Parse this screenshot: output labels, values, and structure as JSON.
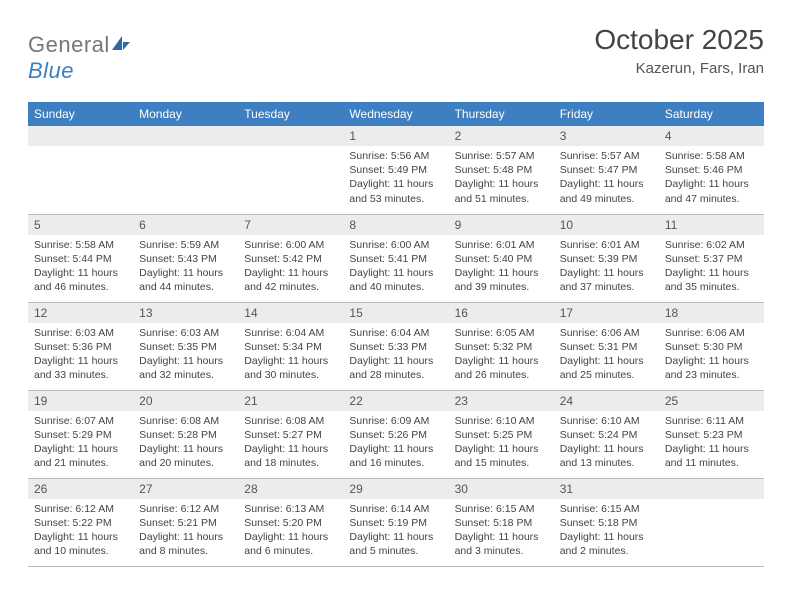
{
  "logo": {
    "text_a": "General",
    "text_b": "Blue"
  },
  "title": "October 2025",
  "location": "Kazerun, Fars, Iran",
  "colors": {
    "header_bg": "#3d7fc0",
    "header_text": "#ffffff",
    "daynum_bg": "#ececec",
    "text": "#444444",
    "rule": "#bbbbbb"
  },
  "weekdays": [
    "Sunday",
    "Monday",
    "Tuesday",
    "Wednesday",
    "Thursday",
    "Friday",
    "Saturday"
  ],
  "grid": {
    "leading_blanks": 3,
    "days": [
      {
        "n": 1,
        "sr": "5:56 AM",
        "ss": "5:49 PM",
        "dl": "11 hours and 53 minutes."
      },
      {
        "n": 2,
        "sr": "5:57 AM",
        "ss": "5:48 PM",
        "dl": "11 hours and 51 minutes."
      },
      {
        "n": 3,
        "sr": "5:57 AM",
        "ss": "5:47 PM",
        "dl": "11 hours and 49 minutes."
      },
      {
        "n": 4,
        "sr": "5:58 AM",
        "ss": "5:46 PM",
        "dl": "11 hours and 47 minutes."
      },
      {
        "n": 5,
        "sr": "5:58 AM",
        "ss": "5:44 PM",
        "dl": "11 hours and 46 minutes."
      },
      {
        "n": 6,
        "sr": "5:59 AM",
        "ss": "5:43 PM",
        "dl": "11 hours and 44 minutes."
      },
      {
        "n": 7,
        "sr": "6:00 AM",
        "ss": "5:42 PM",
        "dl": "11 hours and 42 minutes."
      },
      {
        "n": 8,
        "sr": "6:00 AM",
        "ss": "5:41 PM",
        "dl": "11 hours and 40 minutes."
      },
      {
        "n": 9,
        "sr": "6:01 AM",
        "ss": "5:40 PM",
        "dl": "11 hours and 39 minutes."
      },
      {
        "n": 10,
        "sr": "6:01 AM",
        "ss": "5:39 PM",
        "dl": "11 hours and 37 minutes."
      },
      {
        "n": 11,
        "sr": "6:02 AM",
        "ss": "5:37 PM",
        "dl": "11 hours and 35 minutes."
      },
      {
        "n": 12,
        "sr": "6:03 AM",
        "ss": "5:36 PM",
        "dl": "11 hours and 33 minutes."
      },
      {
        "n": 13,
        "sr": "6:03 AM",
        "ss": "5:35 PM",
        "dl": "11 hours and 32 minutes."
      },
      {
        "n": 14,
        "sr": "6:04 AM",
        "ss": "5:34 PM",
        "dl": "11 hours and 30 minutes."
      },
      {
        "n": 15,
        "sr": "6:04 AM",
        "ss": "5:33 PM",
        "dl": "11 hours and 28 minutes."
      },
      {
        "n": 16,
        "sr": "6:05 AM",
        "ss": "5:32 PM",
        "dl": "11 hours and 26 minutes."
      },
      {
        "n": 17,
        "sr": "6:06 AM",
        "ss": "5:31 PM",
        "dl": "11 hours and 25 minutes."
      },
      {
        "n": 18,
        "sr": "6:06 AM",
        "ss": "5:30 PM",
        "dl": "11 hours and 23 minutes."
      },
      {
        "n": 19,
        "sr": "6:07 AM",
        "ss": "5:29 PM",
        "dl": "11 hours and 21 minutes."
      },
      {
        "n": 20,
        "sr": "6:08 AM",
        "ss": "5:28 PM",
        "dl": "11 hours and 20 minutes."
      },
      {
        "n": 21,
        "sr": "6:08 AM",
        "ss": "5:27 PM",
        "dl": "11 hours and 18 minutes."
      },
      {
        "n": 22,
        "sr": "6:09 AM",
        "ss": "5:26 PM",
        "dl": "11 hours and 16 minutes."
      },
      {
        "n": 23,
        "sr": "6:10 AM",
        "ss": "5:25 PM",
        "dl": "11 hours and 15 minutes."
      },
      {
        "n": 24,
        "sr": "6:10 AM",
        "ss": "5:24 PM",
        "dl": "11 hours and 13 minutes."
      },
      {
        "n": 25,
        "sr": "6:11 AM",
        "ss": "5:23 PM",
        "dl": "11 hours and 11 minutes."
      },
      {
        "n": 26,
        "sr": "6:12 AM",
        "ss": "5:22 PM",
        "dl": "11 hours and 10 minutes."
      },
      {
        "n": 27,
        "sr": "6:12 AM",
        "ss": "5:21 PM",
        "dl": "11 hours and 8 minutes."
      },
      {
        "n": 28,
        "sr": "6:13 AM",
        "ss": "5:20 PM",
        "dl": "11 hours and 6 minutes."
      },
      {
        "n": 29,
        "sr": "6:14 AM",
        "ss": "5:19 PM",
        "dl": "11 hours and 5 minutes."
      },
      {
        "n": 30,
        "sr": "6:15 AM",
        "ss": "5:18 PM",
        "dl": "11 hours and 3 minutes."
      },
      {
        "n": 31,
        "sr": "6:15 AM",
        "ss": "5:18 PM",
        "dl": "11 hours and 2 minutes."
      }
    ]
  },
  "labels": {
    "sunrise": "Sunrise:",
    "sunset": "Sunset:",
    "daylight": "Daylight:"
  }
}
